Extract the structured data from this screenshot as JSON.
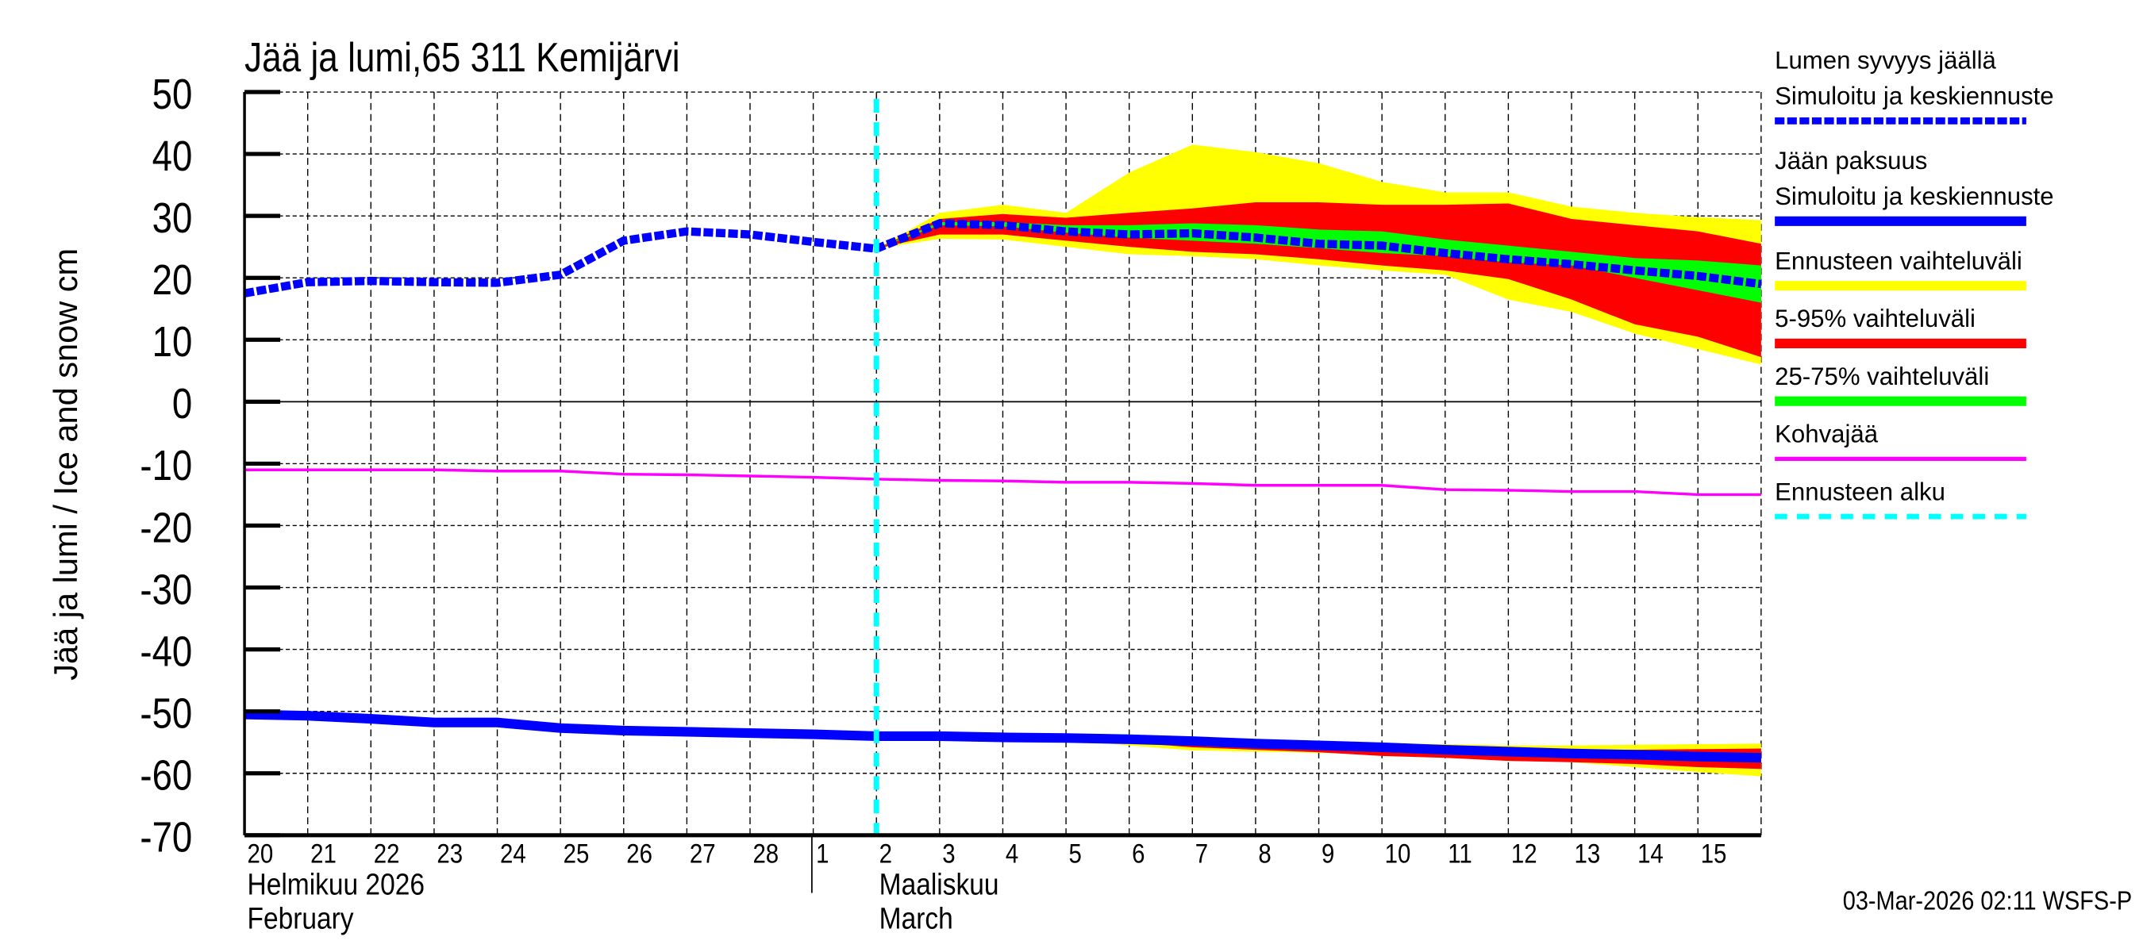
{
  "chart_data": {
    "type": "area",
    "title": "Jää ja lumi,65 311 Kemijärvi",
    "ylabel": "Jää ja lumi / Ice and snow    cm",
    "ylim": [
      -70,
      50
    ],
    "yticks": [
      50,
      40,
      30,
      20,
      10,
      0,
      -10,
      -20,
      -30,
      -40,
      -50,
      -60,
      -70
    ],
    "grid": true,
    "legend_placement": "right",
    "x_dates": [
      "2026-02-20",
      "2026-02-21",
      "2026-02-22",
      "2026-02-23",
      "2026-02-24",
      "2026-02-25",
      "2026-02-26",
      "2026-02-27",
      "2026-02-28",
      "2026-03-01",
      "2026-03-02",
      "2026-03-03",
      "2026-03-04",
      "2026-03-05",
      "2026-03-06",
      "2026-03-07",
      "2026-03-08",
      "2026-03-09",
      "2026-03-10",
      "2026-03-11",
      "2026-03-12",
      "2026-03-13",
      "2026-03-14",
      "2026-03-15",
      "2026-03-16"
    ],
    "xtick_labels": [
      "20",
      "21",
      "22",
      "23",
      "24",
      "25",
      "26",
      "27",
      "28",
      "1",
      "2",
      "3",
      "4",
      "5",
      "6",
      "7",
      "8",
      "9",
      "10",
      "11",
      "12",
      "13",
      "14",
      "15"
    ],
    "month_labels": [
      {
        "line1": "Helmikuu  2026",
        "line2": "February"
      },
      {
        "line1": "Maaliskuu",
        "line2": "March"
      }
    ],
    "forecast_start": "2026-03-02",
    "snow_depth": [
      17.5,
      19.3,
      19.5,
      19.3,
      19.2,
      20.5,
      26,
      27.5,
      27,
      25.8,
      24.7,
      28.8,
      28.5,
      27.5,
      27,
      27.2,
      26.5,
      25.5,
      25.2,
      24,
      23,
      22.2,
      21.2,
      20.3,
      19
    ],
    "snow_bands_from": "2026-03-02",
    "snow_range_max": [
      24.7,
      30.5,
      31.8,
      30.5,
      37,
      41.5,
      40.3,
      38.5,
      35.5,
      33.8,
      33.8,
      31.5,
      30.5,
      29.8,
      29.3
    ],
    "snow_range_min": [
      24.7,
      26.3,
      26.2,
      25,
      23.8,
      23.5,
      23,
      22,
      21.2,
      20.5,
      16.5,
      14.5,
      11,
      8.5,
      6
    ],
    "snow_p95": [
      24.7,
      29.5,
      30.3,
      29.7,
      30.5,
      31.2,
      32.2,
      32.2,
      31.8,
      31.8,
      32,
      29.5,
      28.5,
      27.5,
      25.5
    ],
    "snow_p5": [
      24.7,
      27,
      27,
      26,
      25,
      24.2,
      23.8,
      23,
      22,
      21.2,
      19.8,
      16.5,
      12.5,
      10.5,
      7.2
    ],
    "snow_p75": [
      24.7,
      29,
      29,
      28.5,
      28.5,
      28.8,
      28.5,
      27.8,
      27.5,
      26.2,
      25.2,
      24.2,
      23.2,
      22.8,
      22
    ],
    "snow_p25": [
      24.7,
      28.5,
      28.3,
      27.3,
      26.5,
      26,
      25.5,
      24.8,
      24,
      23.5,
      22.5,
      22,
      20,
      18,
      16
    ],
    "ice_thickness": [
      -50.5,
      -50.7,
      -51.2,
      -51.8,
      -51.8,
      -52.7,
      -53.1,
      -53.3,
      -53.5,
      -53.7,
      -54,
      -54,
      -54.2,
      -54.3,
      -54.5,
      -54.8,
      -55.2,
      -55.5,
      -55.8,
      -56.2,
      -56.5,
      -56.8,
      -57,
      -57.3,
      -57.5
    ],
    "ice_range_max": [
      -54,
      -54,
      -54.2,
      -54.2,
      -54.3,
      -54.5,
      -54.7,
      -54.9,
      -55.1,
      -55.3,
      -55.5,
      -55.5,
      -55.4,
      -55.3,
      -55.2
    ],
    "ice_range_min": [
      -54,
      -54,
      -54.2,
      -54.6,
      -55.5,
      -56.3,
      -56.5,
      -56.7,
      -56.8,
      -57,
      -57.5,
      -58.2,
      -59,
      -59.8,
      -60.5
    ],
    "ice_p95": [
      -54,
      -54,
      -54.2,
      -54.3,
      -54.5,
      -54.9,
      -55.2,
      -55.4,
      -55.6,
      -55.8,
      -56,
      -56.2,
      -56.2,
      -56.1,
      -56
    ],
    "ice_p5": [
      -54,
      -54,
      -54.2,
      -54.5,
      -55,
      -55.8,
      -56.2,
      -56.6,
      -57.2,
      -57.5,
      -58,
      -58.2,
      -58.5,
      -59,
      -59.3
    ],
    "slush_ice": [
      -11,
      -11,
      -11,
      -11,
      -11.2,
      -11.2,
      -11.7,
      -11.8,
      -12,
      -12.2,
      -12.5,
      -12.7,
      -12.8,
      -13,
      -13,
      -13.2,
      -13.5,
      -13.5,
      -13.5,
      -14.2,
      -14.3,
      -14.5,
      -14.5,
      -15,
      -15
    ],
    "legend": [
      {
        "line1": "Lumen syvyys jäällä",
        "line2": "Simuloitu ja keskiennuste",
        "style": "dashed",
        "color": "#0000ff"
      },
      {
        "line1": "Jään paksuus",
        "line2": "Simuloitu ja keskiennuste",
        "style": "solid",
        "color": "#0000ff"
      },
      {
        "line1": "Ennusteen vaihteluväli",
        "style": "band",
        "color": "#ffff00"
      },
      {
        "line1": "5-95% vaihteluväli",
        "style": "band",
        "color": "#ff0000"
      },
      {
        "line1": "25-75% vaihteluväli",
        "style": "band",
        "color": "#00ff00"
      },
      {
        "line1": "Kohvajää",
        "style": "thin",
        "color": "#ff00ff"
      },
      {
        "line1": "Ennusteen alku",
        "style": "dashed",
        "color": "#00ffff"
      }
    ],
    "footer": "03-Mar-2026 02:11 WSFS-P"
  }
}
